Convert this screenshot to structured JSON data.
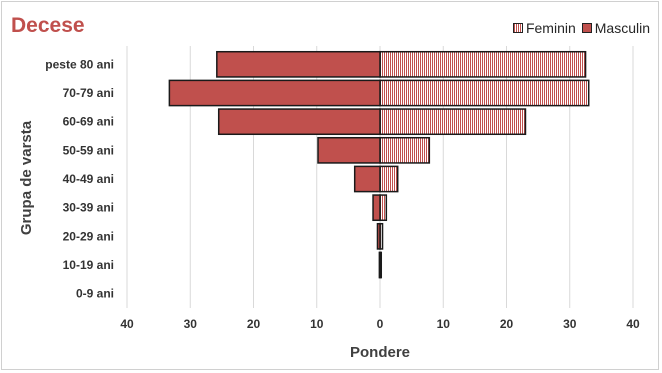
{
  "chart_data": {
    "type": "bar",
    "orientation": "horizontal",
    "title": "Decese",
    "xlabel": "Pondere",
    "ylabel": "Grupa de varsta",
    "categories": [
      "peste 80 ani",
      "70-79 ani",
      "60-69 ani",
      "50-59 ani",
      "40-49 ani",
      "30-39 ani",
      "20-29 ani",
      "10-19 ani",
      "0-9 ani"
    ],
    "series": [
      {
        "name": "Feminin",
        "side": "right",
        "values": [
          32.5,
          33.0,
          23.0,
          7.8,
          2.8,
          1.0,
          0.4,
          0.2,
          0.0
        ]
      },
      {
        "name": "Masculin",
        "side": "left",
        "values": [
          25.8,
          33.3,
          25.5,
          9.8,
          4.0,
          1.1,
          0.4,
          0.1,
          0.0
        ]
      }
    ],
    "xlim": [
      -40,
      40
    ],
    "xticks": [
      -40,
      -30,
      -20,
      -10,
      0,
      10,
      20,
      30,
      40
    ],
    "xtick_labels": [
      "40",
      "30",
      "20",
      "10",
      "0",
      "10",
      "20",
      "30",
      "40"
    ],
    "grid": true,
    "legend_position": "top-right",
    "colors": {
      "bar_fill": "#c0504d",
      "bar_edge": "#1a1a1a",
      "grid": "#d9d9d9",
      "title": "#c0504d"
    }
  }
}
